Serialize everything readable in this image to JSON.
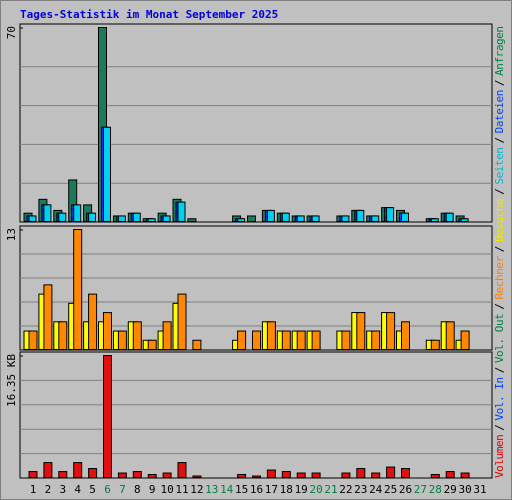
{
  "title": "Tages-Statistik im Monat September 2025",
  "legend": {
    "separator": "/",
    "items": [
      {
        "name": "Volumen",
        "color": "#e00000"
      },
      {
        "name": "Vol. In",
        "color": "#0040ff"
      },
      {
        "name": "Vol. Out",
        "color": "#008040"
      },
      {
        "name": "Rechner",
        "color": "#ff8000"
      },
      {
        "name": "Besuche",
        "color": "#e8e800"
      },
      {
        "name": "Seiten",
        "color": "#00b8d8"
      },
      {
        "name": "Dateien",
        "color": "#0040ff"
      },
      {
        "name": "Anfragen",
        "color": "#008040"
      }
    ]
  },
  "chart_data": [
    {
      "type": "bar",
      "ylim": [
        0,
        70
      ],
      "yticks": [
        70
      ],
      "grid_divisions": 5,
      "series": [
        {
          "name": "Anfragen",
          "color": "#1a7a5a",
          "values": [
            3,
            8,
            4,
            15,
            6,
            70,
            2,
            3,
            1,
            3,
            8,
            1,
            0,
            0,
            2,
            2,
            4,
            3,
            2,
            2,
            0,
            2,
            4,
            2,
            5,
            4,
            0,
            1,
            3,
            2,
            0
          ]
        },
        {
          "name": "Dateien",
          "color": "#0040ff",
          "values": [
            2,
            6,
            3,
            6,
            3,
            34,
            2,
            3,
            1,
            2,
            7,
            0,
            0,
            0,
            1,
            0,
            4,
            3,
            2,
            2,
            0,
            2,
            4,
            2,
            5,
            3,
            0,
            1,
            3,
            1,
            0
          ]
        },
        {
          "name": "Seiten",
          "color": "#00d0f0",
          "values": [
            2,
            6,
            3,
            6,
            3,
            34,
            2,
            3,
            1,
            2,
            7,
            0,
            0,
            0,
            1,
            0,
            4,
            3,
            2,
            2,
            0,
            2,
            4,
            2,
            5,
            3,
            0,
            1,
            3,
            1,
            0
          ]
        }
      ]
    },
    {
      "type": "bar",
      "ylim": [
        0,
        13
      ],
      "yticks": [
        13
      ],
      "grid_divisions": 5,
      "series": [
        {
          "name": "Besuche",
          "color": "#ffff00",
          "values": [
            2,
            6,
            3,
            5,
            3,
            3,
            2,
            3,
            1,
            2,
            5,
            0,
            0,
            0,
            1,
            0,
            3,
            2,
            2,
            2,
            0,
            2,
            4,
            2,
            4,
            2,
            0,
            1,
            3,
            1,
            0
          ]
        },
        {
          "name": "Rechner",
          "color": "#ff8800",
          "values": [
            2,
            7,
            3,
            13,
            6,
            4,
            2,
            3,
            1,
            3,
            6,
            1,
            0,
            0,
            2,
            2,
            3,
            2,
            2,
            2,
            0,
            2,
            4,
            2,
            4,
            3,
            0,
            1,
            3,
            2,
            0
          ]
        }
      ]
    },
    {
      "type": "bar",
      "ylim": [
        0,
        16.35
      ],
      "yticks": [
        {
          "value": 16.35,
          "label": "16.35 KB"
        }
      ],
      "grid_divisions": 5,
      "categories": [
        "1",
        "2",
        "3",
        "4",
        "5",
        "6",
        "7",
        "8",
        "9",
        "10",
        "11",
        "12",
        "13",
        "14",
        "15",
        "16",
        "17",
        "18",
        "19",
        "20",
        "21",
        "22",
        "23",
        "24",
        "25",
        "26",
        "27",
        "28",
        "29",
        "30",
        "31"
      ],
      "category_colors": [
        "#000000",
        "#000000",
        "#000000",
        "#000000",
        "#000000",
        "#008040",
        "#008040",
        "#000000",
        "#000000",
        "#000000",
        "#000000",
        "#000000",
        "#008040",
        "#008040",
        "#000000",
        "#000000",
        "#000000",
        "#000000",
        "#000000",
        "#008040",
        "#008040",
        "#000000",
        "#000000",
        "#000000",
        "#000000",
        "#000000",
        "#008040",
        "#008040",
        "#000000",
        "#000000",
        "#000000"
      ],
      "series": [
        {
          "name": "Volumen",
          "color": "#e01010",
          "values": [
            0.8,
            2.0,
            0.8,
            2.0,
            1.2,
            16.35,
            0.6,
            0.8,
            0.4,
            0.6,
            2.0,
            0.2,
            0,
            0,
            0.4,
            0.2,
            1.0,
            0.8,
            0.6,
            0.6,
            0,
            0.6,
            1.2,
            0.6,
            1.4,
            1.2,
            0,
            0.4,
            0.8,
            0.6,
            0
          ]
        }
      ]
    }
  ]
}
